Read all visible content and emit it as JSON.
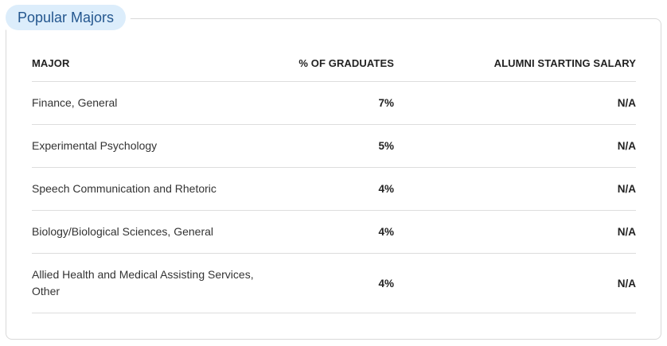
{
  "section": {
    "title": "Popular Majors"
  },
  "table": {
    "headers": {
      "major": "MAJOR",
      "pct": "% OF GRADUATES",
      "salary": "ALUMNI STARTING SALARY"
    },
    "rows": [
      {
        "major": "Finance, General",
        "pct": "7%",
        "salary": "N/A"
      },
      {
        "major": "Experimental Psychology",
        "pct": "5%",
        "salary": "N/A"
      },
      {
        "major": "Speech Communication and Rhetoric",
        "pct": "4%",
        "salary": "N/A"
      },
      {
        "major": "Biology/Biological Sciences, General",
        "pct": "4%",
        "salary": "N/A"
      },
      {
        "major": "Allied Health and Medical Assisting Services, Other",
        "pct": "4%",
        "salary": "N/A"
      }
    ]
  }
}
